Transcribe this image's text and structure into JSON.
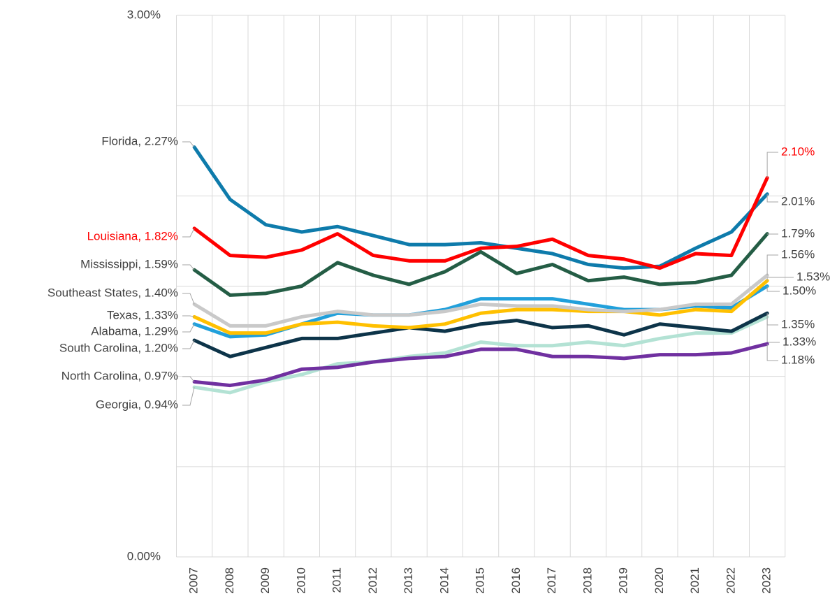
{
  "chart_data": {
    "type": "line",
    "categories": [
      "2007",
      "2008",
      "2009",
      "2010",
      "2011",
      "2012",
      "2013",
      "2014",
      "2015",
      "2016",
      "2017",
      "2018",
      "2019",
      "2020",
      "2021",
      "2022",
      "2023"
    ],
    "ylim": [
      0,
      3
    ],
    "yticks": [
      {
        "value": 0,
        "label": "0.00%"
      },
      {
        "value": 3,
        "label": "3.00%"
      }
    ],
    "ygrid": [
      0.5,
      1,
      1.5,
      2,
      2.5
    ],
    "grid": true,
    "series": [
      {
        "name": "Georgia",
        "color": "#b3e2d4",
        "values": [
          0.94,
          0.91,
          0.97,
          1.01,
          1.07,
          1.08,
          1.11,
          1.13,
          1.19,
          1.17,
          1.17,
          1.19,
          1.17,
          1.21,
          1.24,
          1.24,
          1.33
        ],
        "value_labels": [
          "Georgia, 0.94%",
          null,
          null,
          null,
          null,
          null,
          null,
          null,
          null,
          null,
          null,
          null,
          null,
          null,
          null,
          null,
          "1.33%"
        ]
      },
      {
        "name": "North Carolina",
        "color": "#7030a0",
        "values": [
          0.97,
          0.95,
          0.98,
          1.04,
          1.05,
          1.08,
          1.1,
          1.11,
          1.15,
          1.15,
          1.11,
          1.11,
          1.1,
          1.12,
          1.12,
          1.13,
          1.18
        ],
        "value_labels": [
          "North Carolina, 0.97%",
          null,
          null,
          null,
          null,
          null,
          null,
          null,
          null,
          null,
          null,
          null,
          null,
          null,
          null,
          null,
          "1.18%"
        ]
      },
      {
        "name": "South Carolina",
        "color": "#0d3449",
        "values": [
          1.2,
          1.11,
          1.16,
          1.21,
          1.21,
          1.24,
          1.27,
          1.25,
          1.29,
          1.31,
          1.27,
          1.28,
          1.23,
          1.29,
          1.27,
          1.25,
          1.35
        ],
        "value_labels": [
          "South Carolina, 1.20%",
          null,
          null,
          null,
          null,
          null,
          null,
          null,
          null,
          null,
          null,
          null,
          null,
          null,
          null,
          null,
          "1.35%"
        ]
      },
      {
        "name": "Alabama",
        "color": "#21a0db",
        "values": [
          1.29,
          1.22,
          1.23,
          1.29,
          1.35,
          1.34,
          1.34,
          1.37,
          1.43,
          1.43,
          1.43,
          1.4,
          1.37,
          1.37,
          1.39,
          1.38,
          1.5
        ],
        "value_labels": [
          "Alabama, 1.29%",
          null,
          null,
          null,
          null,
          null,
          null,
          null,
          null,
          null,
          null,
          null,
          null,
          null,
          null,
          null,
          "1.50%"
        ]
      },
      {
        "name": "Texas",
        "color": "#ffc000",
        "values": [
          1.33,
          1.24,
          1.24,
          1.29,
          1.3,
          1.28,
          1.27,
          1.29,
          1.35,
          1.37,
          1.37,
          1.36,
          1.36,
          1.34,
          1.37,
          1.36,
          1.53
        ],
        "value_labels": [
          "Texas, 1.33%",
          null,
          null,
          null,
          null,
          null,
          null,
          null,
          null,
          null,
          null,
          null,
          null,
          null,
          null,
          null,
          "1.53%"
        ]
      },
      {
        "name": "Southeast States",
        "color": "#c9c9c9",
        "values": [
          1.4,
          1.28,
          1.28,
          1.33,
          1.36,
          1.34,
          1.34,
          1.36,
          1.4,
          1.39,
          1.39,
          1.37,
          1.36,
          1.37,
          1.4,
          1.4,
          1.56
        ],
        "value_labels": [
          "Southeast States, 1.40%",
          null,
          null,
          null,
          null,
          null,
          null,
          null,
          null,
          null,
          null,
          null,
          null,
          null,
          null,
          null,
          "1.56%"
        ]
      },
      {
        "name": "Mississippi",
        "color": "#245d45",
        "values": [
          1.59,
          1.45,
          1.46,
          1.5,
          1.63,
          1.56,
          1.51,
          1.58,
          1.69,
          1.57,
          1.62,
          1.53,
          1.55,
          1.51,
          1.52,
          1.56,
          1.79
        ],
        "value_labels": [
          "Mississippi, 1.59%",
          null,
          null,
          null,
          null,
          null,
          null,
          null,
          null,
          null,
          null,
          null,
          null,
          null,
          null,
          null,
          "1.79%"
        ]
      },
      {
        "name": "Florida",
        "color": "#0e7bab",
        "values": [
          2.27,
          1.98,
          1.84,
          1.8,
          1.83,
          1.78,
          1.73,
          1.73,
          1.74,
          1.71,
          1.68,
          1.62,
          1.6,
          1.61,
          1.71,
          1.8,
          2.01
        ],
        "value_labels": [
          "Florida, 2.27%",
          null,
          null,
          null,
          null,
          null,
          null,
          null,
          null,
          null,
          null,
          null,
          null,
          null,
          null,
          null,
          "2.01%"
        ]
      },
      {
        "name": "Louisiana",
        "color": "#ff0000",
        "label_color": "#ff0000",
        "values": [
          1.82,
          1.67,
          1.66,
          1.7,
          1.79,
          1.67,
          1.64,
          1.64,
          1.71,
          1.72,
          1.76,
          1.67,
          1.65,
          1.6,
          1.68,
          1.67,
          2.1
        ],
        "value_labels": [
          "Louisiana, 1.82%",
          null,
          null,
          null,
          null,
          null,
          null,
          null,
          null,
          null,
          null,
          null,
          null,
          null,
          null,
          null,
          "2.10%"
        ]
      }
    ]
  }
}
